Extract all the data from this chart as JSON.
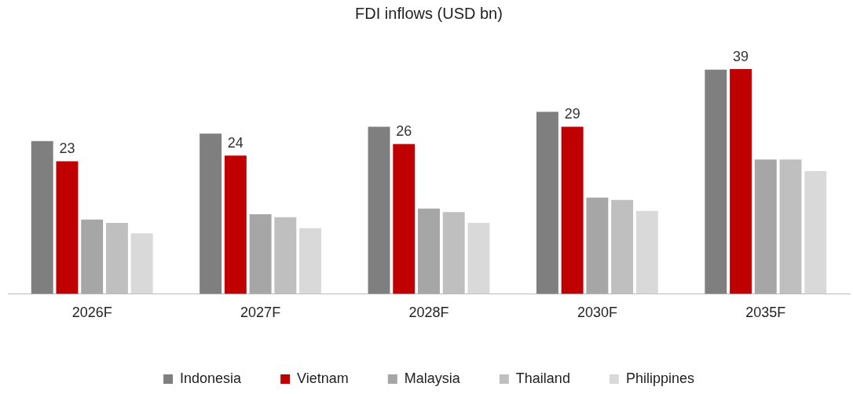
{
  "chart_data": {
    "type": "bar",
    "title": "FDI inflows (USD bn)",
    "categories": [
      "2026F",
      "2027F",
      "2028F",
      "2030F",
      "2035F"
    ],
    "series": [
      {
        "name": "Indonesia",
        "color": "#7f7f7f",
        "values": [
          26.5,
          27.8,
          29.0,
          31.6,
          38.9
        ]
      },
      {
        "name": "Vietnam",
        "color": "#c00000",
        "values": [
          23,
          24,
          26,
          29,
          39
        ],
        "value_labels": [
          "23",
          "24",
          "26",
          "29",
          "39"
        ]
      },
      {
        "name": "Malaysia",
        "color": "#a6a6a6",
        "values": [
          12.9,
          13.8,
          14.8,
          16.7,
          23.3
        ]
      },
      {
        "name": "Thailand",
        "color": "#bfbfbf",
        "values": [
          12.3,
          13.3,
          14.2,
          16.3,
          23.3
        ]
      },
      {
        "name": "Philippines",
        "color": "#d9d9d9",
        "values": [
          10.5,
          11.4,
          12.3,
          14.4,
          21.3
        ]
      }
    ],
    "tick_labels": "x",
    "grid": false,
    "legend": "bottom"
  }
}
